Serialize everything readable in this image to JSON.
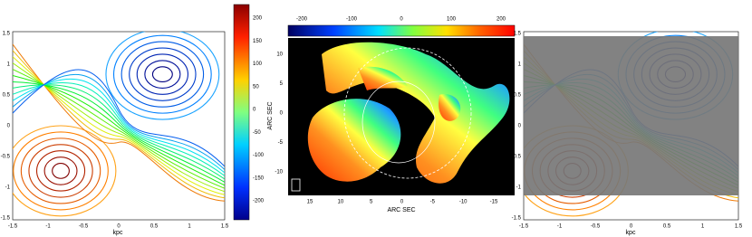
{
  "panels": [
    {
      "xlabel": "kpc",
      "xticks": [
        "-1.5",
        "-1",
        "-0.5",
        "0",
        "0.5",
        "1",
        "1.5"
      ],
      "yticks": [
        "1.5",
        "1",
        "0.5",
        "0",
        "-0.5",
        "-1",
        "-1.5"
      ],
      "colorbar_ticks": [
        "200",
        "150",
        "100",
        "50",
        "0",
        "-50",
        "-100",
        "-150",
        "-200"
      ]
    },
    {
      "xlabel": "ARC SEC",
      "ylabel": "ARC SEC",
      "xticks": [
        "15",
        "10",
        "5",
        "0",
        "-5",
        "-10",
        "-15"
      ],
      "yticks": [
        "10",
        "5",
        "0",
        "-5",
        "-10"
      ],
      "colorbar_ticks": [
        "-200",
        "-100",
        "0",
        "100",
        "200"
      ]
    },
    {
      "xlabel": "kpc",
      "xticks": [
        "-1.5",
        "-1",
        "-0.5",
        "0",
        "0.5",
        "1",
        "1.5"
      ],
      "yticks": [
        "1.5",
        "1",
        "0.5",
        "0",
        "-0.5",
        "-1",
        "-1.5"
      ]
    }
  ]
}
